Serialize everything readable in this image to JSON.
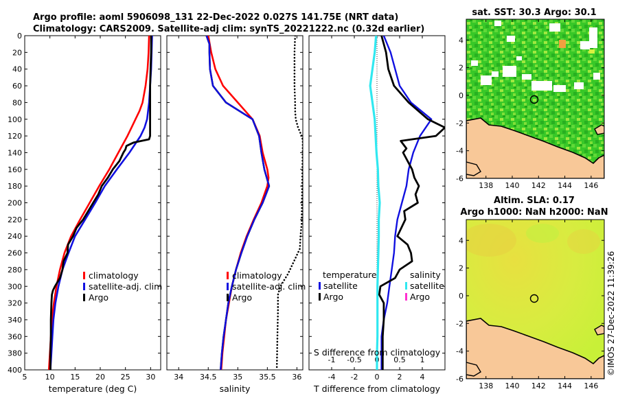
{
  "title_line1": "Argo profile: aoml 5906098_131 22-Dec-2022 0.027S 141.75E (NRT data)",
  "title_line2": "Climatology: CARS2009. Satellite-adj clim: synTS_20221222.nc (0.32d earlier)",
  "watermark": "©IMOS 27-Dec-2022 11:39:26",
  "colors": {
    "climatology": "#ff0000",
    "satellite": "#1010e0",
    "argo": "#000000",
    "salinity_diff": "#30e8f0",
    "argo_salinity_marker": "#ff30d0",
    "land": "#f8c898",
    "sst_green": "#30c020",
    "sla_yellow": "#d8f040"
  },
  "chart_data": [
    {
      "type": "line",
      "id": "temperature",
      "xlabel": "temperature (deg C)",
      "ylabel": "",
      "xlim": [
        5,
        32
      ],
      "ylim": [
        400,
        0
      ],
      "x_ticks": [
        "5",
        "10",
        "15",
        "20",
        "25",
        "30"
      ],
      "y_ticks": [
        "0",
        "20",
        "40",
        "60",
        "80",
        "100",
        "120",
        "140",
        "160",
        "180",
        "200",
        "220",
        "240",
        "260",
        "280",
        "300",
        "320",
        "340",
        "360",
        "380",
        "400"
      ],
      "legend": [
        "climatology",
        "satellite-adj. clim",
        "Argo"
      ],
      "series": [
        {
          "name": "climatology",
          "depth": [
            0,
            20,
            40,
            60,
            80,
            90,
            100,
            110,
            120,
            140,
            160,
            180,
            200,
            220,
            240,
            260,
            280,
            300,
            320,
            340,
            360,
            380,
            400
          ],
          "values": [
            29.7,
            29.6,
            29.4,
            29.0,
            28.4,
            27.8,
            27.0,
            26.2,
            25.4,
            23.6,
            21.8,
            19.8,
            17.9,
            16.0,
            14.2,
            12.9,
            12.0,
            11.3,
            10.8,
            10.4,
            10.2,
            10.0,
            9.8
          ]
        },
        {
          "name": "satellite-adj. clim",
          "depth": [
            0,
            20,
            40,
            60,
            80,
            100,
            110,
            120,
            140,
            160,
            180,
            200,
            220,
            240,
            260,
            280,
            300,
            320,
            340,
            360,
            380,
            400
          ],
          "values": [
            30.3,
            30.2,
            30.1,
            29.9,
            29.7,
            29.3,
            28.8,
            28.0,
            25.8,
            23.3,
            20.9,
            19.0,
            17.0,
            15.0,
            13.7,
            12.5,
            11.7,
            11.1,
            10.7,
            10.5,
            10.3,
            10.1
          ]
        },
        {
          "name": "Argo",
          "depth": [
            0,
            20,
            40,
            60,
            80,
            100,
            110,
            120,
            124,
            128,
            132,
            136,
            140,
            150,
            160,
            170,
            180,
            190,
            200,
            210,
            220,
            230,
            240,
            250,
            260,
            270,
            280,
            290,
            300,
            305,
            310,
            320,
            340,
            360,
            380,
            400
          ],
          "values": [
            30.1,
            30.1,
            30.0,
            29.9,
            29.9,
            29.9,
            29.9,
            29.9,
            29.7,
            26.6,
            25.2,
            25.0,
            24.6,
            23.8,
            22.5,
            21.5,
            20.3,
            19.6,
            18.6,
            17.6,
            16.6,
            15.3,
            14.6,
            13.6,
            13.5,
            12.7,
            12.5,
            12.0,
            11.0,
            10.6,
            10.4,
            10.3,
            10.2,
            10.2,
            10.1,
            10.1
          ]
        }
      ]
    },
    {
      "type": "line",
      "id": "salinity",
      "xlabel": "salinity",
      "ylabel": "",
      "xlim": [
        33.8,
        36.1
      ],
      "ylim": [
        400,
        0
      ],
      "x_ticks": [
        "34",
        "34.5",
        "35",
        "35.5",
        "36"
      ],
      "legend": [
        "climatology",
        "satellite-adj. clim",
        "Argo"
      ],
      "series": [
        {
          "name": "climatology",
          "depth": [
            0,
            20,
            40,
            60,
            80,
            100,
            120,
            140,
            160,
            170,
            180,
            200,
            220,
            240,
            260,
            280,
            300,
            320,
            340,
            360,
            380,
            400
          ],
          "values": [
            34.5,
            34.55,
            34.62,
            34.75,
            35.0,
            35.25,
            35.37,
            35.42,
            35.5,
            35.52,
            35.5,
            35.4,
            35.27,
            35.15,
            35.05,
            34.97,
            34.9,
            34.85,
            34.8,
            34.77,
            34.74,
            34.72
          ]
        },
        {
          "name": "satellite-adj. clim",
          "depth": [
            0,
            10,
            20,
            40,
            60,
            80,
            100,
            120,
            140,
            160,
            180,
            200,
            220,
            240,
            260,
            280,
            300,
            320,
            340,
            360,
            380,
            400
          ],
          "values": [
            34.47,
            34.52,
            34.52,
            34.53,
            34.58,
            34.8,
            35.25,
            35.36,
            35.4,
            35.45,
            35.53,
            35.42,
            35.28,
            35.16,
            35.06,
            34.97,
            34.9,
            34.84,
            34.8,
            34.76,
            34.73,
            34.71
          ]
        },
        {
          "name": "Argo",
          "depth": [
            0,
            10,
            20,
            40,
            60,
            80,
            100,
            120,
            140,
            160,
            180,
            200,
            220,
            240,
            260,
            280,
            300,
            320,
            340,
            360,
            380,
            400
          ],
          "values": [
            34.47,
            34.52,
            34.52,
            34.53,
            34.58,
            34.8,
            35.25,
            35.36,
            35.4,
            35.45,
            35.53,
            35.42,
            35.28,
            35.16,
            35.06,
            34.97,
            34.9,
            34.84,
            34.8,
            34.76,
            34.73,
            34.71
          ]
        },
        {
          "name": "salinity profile (dotted)",
          "depth": [
            0,
            20,
            40,
            60,
            80,
            90,
            100,
            110,
            120,
            125,
            225,
            240,
            255,
            270,
            285,
            300,
            310,
            330,
            360,
            400
          ],
          "values": [
            35.97,
            35.96,
            35.96,
            35.96,
            35.97,
            35.97,
            35.98,
            36.02,
            36.08,
            36.1,
            36.08,
            36.06,
            36.05,
            35.95,
            35.85,
            35.72,
            35.68,
            35.68,
            35.67,
            35.66
          ]
        }
      ]
    },
    {
      "type": "line",
      "id": "difference",
      "xlabel": "T difference from climatology",
      "top_axis_label": "S difference from climatology",
      "xlim": [
        -6,
        6
      ],
      "ylim": [
        400,
        0
      ],
      "x_ticks": [
        "-4",
        "-2",
        "0",
        "2",
        "4"
      ],
      "top_ticks": [
        "-1",
        "-0.5",
        "0",
        "0.5",
        "1"
      ],
      "legend_temperature_title": "temperature",
      "legend_salinity_title": "salinity",
      "legend": [
        "satellite",
        "Argo",
        "satellite",
        "Argo"
      ],
      "series": [
        {
          "name": "T satellite",
          "depth": [
            0,
            20,
            40,
            60,
            80,
            100,
            120,
            140,
            160,
            180,
            200,
            220,
            240,
            260,
            280,
            300,
            320,
            340,
            360,
            380,
            400
          ],
          "values": [
            0.6,
            1.2,
            1.6,
            2.0,
            3.0,
            4.8,
            3.8,
            3.2,
            2.8,
            2.6,
            2.2,
            1.8,
            1.6,
            1.5,
            1.3,
            1.1,
            0.9,
            0.6,
            0.4,
            0.4,
            0.4
          ]
        },
        {
          "name": "T Argo",
          "depth": [
            0,
            20,
            40,
            60,
            80,
            100,
            110,
            120,
            126,
            135,
            140,
            160,
            170,
            180,
            190,
            200,
            210,
            220,
            240,
            250,
            260,
            270,
            280,
            290,
            300,
            310,
            320,
            340,
            360,
            380,
            400
          ],
          "values": [
            0.4,
            0.8,
            1.0,
            1.5,
            2.8,
            4.5,
            6.0,
            5.2,
            2.1,
            2.6,
            2.3,
            3.1,
            3.3,
            3.7,
            3.4,
            3.6,
            2.4,
            2.5,
            1.8,
            2.7,
            3.0,
            3.1,
            2.0,
            1.6,
            0.3,
            0.2,
            0.6,
            0.6,
            0.5,
            0.5,
            0.5
          ]
        },
        {
          "name": "S satellite",
          "depth": [
            0,
            20,
            40,
            60,
            80,
            100,
            120,
            140,
            160,
            180,
            200,
            220,
            240,
            260,
            280,
            300,
            320,
            340,
            360,
            380,
            400
          ],
          "values": [
            -0.02,
            -0.05,
            -0.1,
            -0.15,
            -0.1,
            -0.05,
            -0.03,
            -0.01,
            0.02,
            0.03,
            0.06,
            0.04,
            0.04,
            0.03,
            0.02,
            0.01,
            0.01,
            0.01,
            0.01,
            0.0,
            0.0
          ]
        }
      ]
    },
    {
      "type": "heatmap",
      "id": "sst_map",
      "title": "sat. SST: 30.3 Argo: 30.1",
      "x_ticks": [
        "138",
        "140",
        "142",
        "144",
        "146"
      ],
      "y_ticks": [
        "4",
        "2",
        "0",
        "-2",
        "-4",
        "-6"
      ],
      "xlim": [
        136.5,
        147
      ],
      "ylim": [
        -6,
        5.5
      ],
      "argo_position": [
        141.75,
        -0.027
      ]
    },
    {
      "type": "heatmap",
      "id": "sla_map",
      "title_line1": "Altim. SLA: 0.17",
      "title_line2": "Argo h1000: NaN h2000: NaN",
      "x_ticks": [
        "138",
        "140",
        "142",
        "144",
        "146"
      ],
      "y_ticks": [
        "4",
        "2",
        "0",
        "-2",
        "-4",
        "-6"
      ],
      "xlim": [
        136.5,
        147
      ],
      "ylim": [
        -6,
        5.5
      ],
      "argo_position": [
        141.75,
        -0.027
      ]
    }
  ]
}
